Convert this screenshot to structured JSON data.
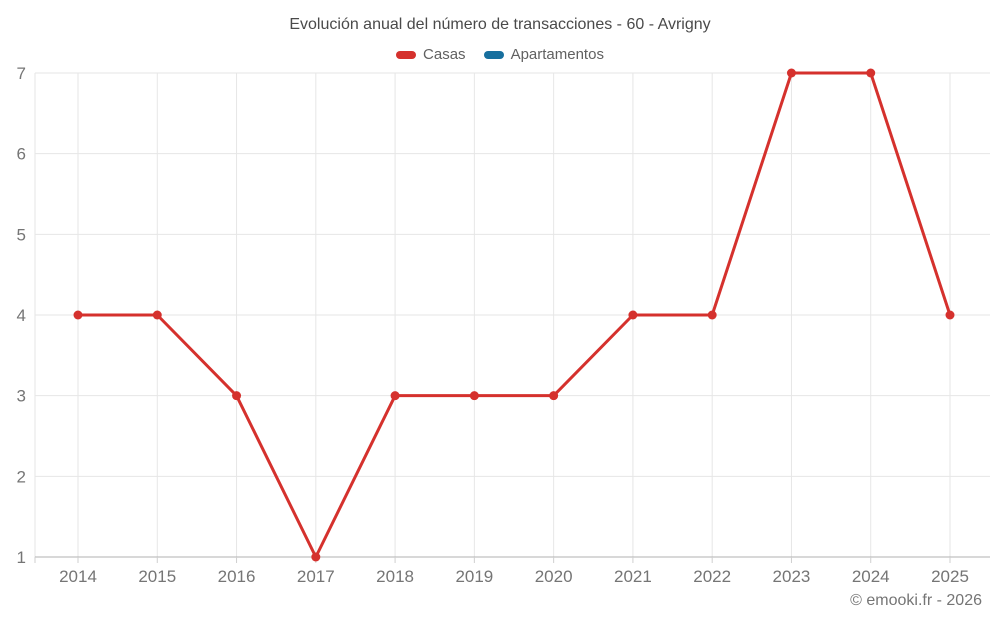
{
  "page": {
    "title": "Evolución anual del número de transacciones - 60 - Avrigny",
    "footer": "© emooki.fr - 2026"
  },
  "chart_data": {
    "type": "line",
    "title": "Evolución anual del número de transacciones - 60 - Avrigny",
    "categories": [
      "2014",
      "2015",
      "2016",
      "2017",
      "2018",
      "2019",
      "2020",
      "2021",
      "2022",
      "2023",
      "2024",
      "2025"
    ],
    "series": [
      {
        "name": "Casas",
        "color": "#d5312d",
        "values": [
          4,
          4,
          3,
          1,
          3,
          3,
          3,
          4,
          4,
          7,
          7,
          4
        ]
      },
      {
        "name": "Apartamentos",
        "color": "#176f9e",
        "values": []
      }
    ],
    "xlabel": "",
    "ylabel": "",
    "ylim": [
      1,
      7
    ],
    "yticks": [
      1,
      2,
      3,
      4,
      5,
      6,
      7
    ],
    "grid": true,
    "legend_position": "top",
    "footer": "© emooki.fr - 2026",
    "style": {
      "grid_color": "#e6e6e6",
      "axis_line_color": "#b0b0b0",
      "tick_color": "#cfcfcf",
      "tick_label_color": "#757575",
      "title_color": "#4a4a4a",
      "legend_text_color": "#616161",
      "background": "#ffffff"
    }
  }
}
